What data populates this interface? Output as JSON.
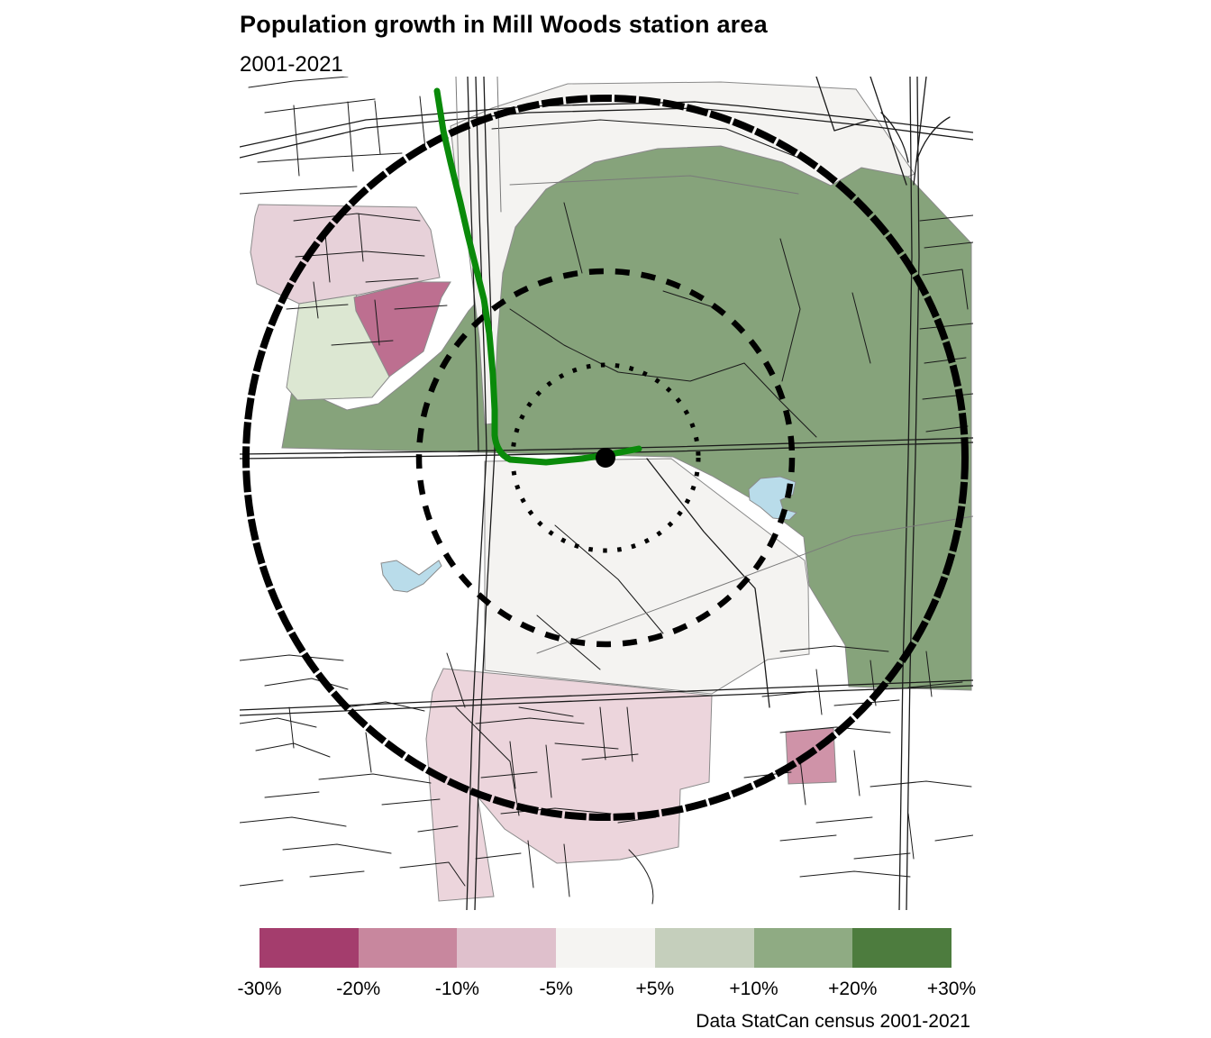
{
  "title": "Population growth in Mill Woods station area",
  "subtitle": "2001-2021",
  "caption": "Data StatCan census 2001-2021",
  "legend": {
    "boundary_labels": [
      "-30%",
      "-20%",
      "-10%",
      "-5%",
      "+5%",
      "+10%",
      "+20%",
      "+30%"
    ],
    "swatch_colors": [
      "#a43d6d",
      "#c8879e",
      "#dfc0cc",
      "#f5f4f2",
      "#c5cfbc",
      "#8fab83",
      "#4d7c3e"
    ]
  },
  "map": {
    "colors": {
      "growth_mid": "#86a37b",
      "growth_low": "#dce7d2",
      "decline_low_nw": "#e7d1d9",
      "decline_low_s": "#ecd5dc",
      "decline_high": "#bd6f90",
      "decline_mid": "#cf93a8",
      "neutral": "#f4f3f1",
      "water": "#b9dcea",
      "lrt_line": "#0a8a0a",
      "station_dot": "#000000",
      "ring": "#000000",
      "road": "#1a1a1a",
      "road_secondary": "#7a7a7a"
    }
  }
}
